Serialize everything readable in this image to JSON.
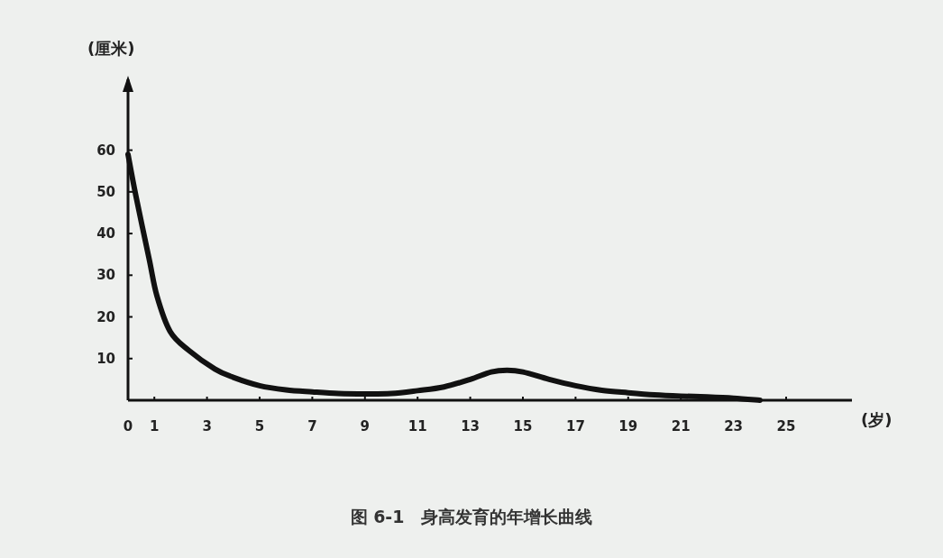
{
  "chart_data": {
    "type": "line",
    "title": "图 6-1　身高发育的年增长曲线",
    "xlabel": "(岁)",
    "ylabel": "(厘米)",
    "xlim": [
      0,
      27.5
    ],
    "ylim": [
      0,
      77
    ],
    "xticks": [
      0,
      1,
      3,
      5,
      7,
      9,
      11,
      13,
      15,
      17,
      19,
      21,
      23,
      25
    ],
    "yticks": [
      10,
      20,
      30,
      40,
      50,
      60
    ],
    "grid": false,
    "marker": "none",
    "line_style": "solid",
    "series": [
      {
        "color": "#111111",
        "x": [
          0,
          0.3,
          0.8,
          1.1,
          1.6,
          2.3,
          3.3,
          4,
          5,
          6,
          7,
          8,
          9,
          10,
          11,
          12,
          13,
          13.8,
          14.4,
          15,
          16,
          17,
          18,
          19,
          20,
          21,
          22,
          23,
          24
        ],
        "values": [
          59,
          49,
          34,
          25,
          16.5,
          12,
          7.5,
          5.5,
          3.5,
          2.5,
          2,
          1.6,
          1.5,
          1.6,
          2.3,
          3.2,
          5,
          6.8,
          7.2,
          6.8,
          5,
          3.5,
          2.4,
          1.8,
          1.3,
          1,
          0.8,
          0.5,
          0
        ]
      }
    ]
  }
}
